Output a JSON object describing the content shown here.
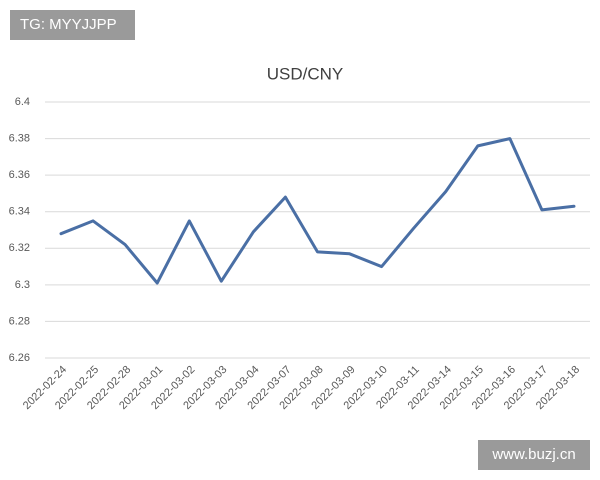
{
  "chart_data": {
    "type": "line",
    "title": "USD/CNY",
    "categories": [
      "2022-02-24",
      "2022-02-25",
      "2022-02-28",
      "2022-03-01",
      "2022-03-02",
      "2022-03-03",
      "2022-03-04",
      "2022-03-07",
      "2022-03-08",
      "2022-03-09",
      "2022-03-10",
      "2022-03-11",
      "2022-03-14",
      "2022-03-15",
      "2022-03-16",
      "2022-03-17",
      "2022-03-18"
    ],
    "values": [
      6.328,
      6.335,
      6.322,
      6.301,
      6.335,
      6.302,
      6.329,
      6.348,
      6.318,
      6.317,
      6.31,
      6.331,
      6.351,
      6.376,
      6.38,
      6.341,
      6.343
    ],
    "color": "#4a6fa5",
    "ylim": [
      6.26,
      6.4
    ],
    "yticks": [
      6.26,
      6.28,
      6.3,
      6.32,
      6.34,
      6.36,
      6.38,
      6.4
    ],
    "grid": true
  },
  "overlays": {
    "top_left": "TG: MYYJJPP",
    "bottom_right": "www.buzj.cn"
  }
}
